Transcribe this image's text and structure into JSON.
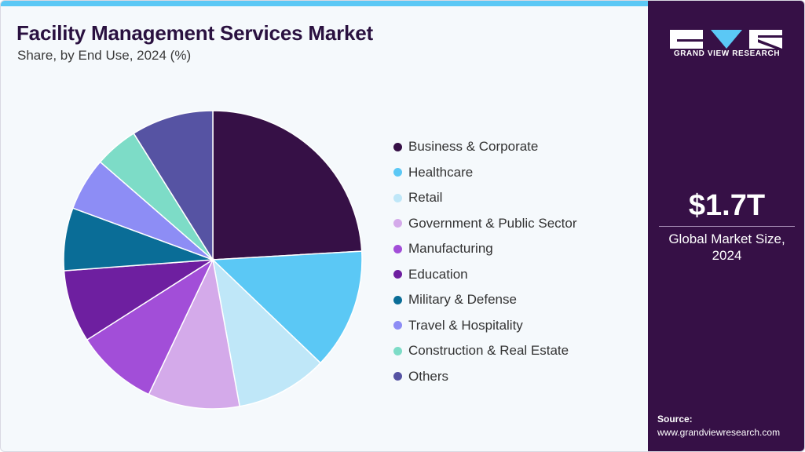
{
  "header": {
    "title": "Facility Management Services Market",
    "subtitle": "Share, by End Use, 2024 (%)"
  },
  "chart_data": {
    "type": "pie",
    "title": "Facility Management Services Market",
    "subtitle": "Share, by End Use, 2024 (%)",
    "categories": [
      "Business & Corporate",
      "Healthcare",
      "Retail",
      "Government & Public Sector",
      "Manufacturing",
      "Education",
      "Military & Defense",
      "Travel & Hospitality",
      "Construction & Real Estate",
      "Others"
    ],
    "values": [
      23.0,
      12.5,
      9.5,
      9.5,
      8.5,
      7.5,
      6.5,
      5.5,
      4.5,
      8.5
    ],
    "colors": [
      "#361046",
      "#5bc8f5",
      "#bfe7f8",
      "#d4aaea",
      "#a24ed8",
      "#6e1fa0",
      "#0a6d97",
      "#8d8df5",
      "#7ddcc7",
      "#5653a3"
    ],
    "start_angle_deg": 0,
    "direction": "clockwise",
    "legend_position": "right"
  },
  "sidebar": {
    "brand": "GRAND VIEW RESEARCH",
    "logo_icon": "gvr-logo-icon",
    "market_size": "$1.7T",
    "market_size_label": "Global Market Size, 2024",
    "source_title": "Source:",
    "source_url": "www.grandviewresearch.com"
  }
}
